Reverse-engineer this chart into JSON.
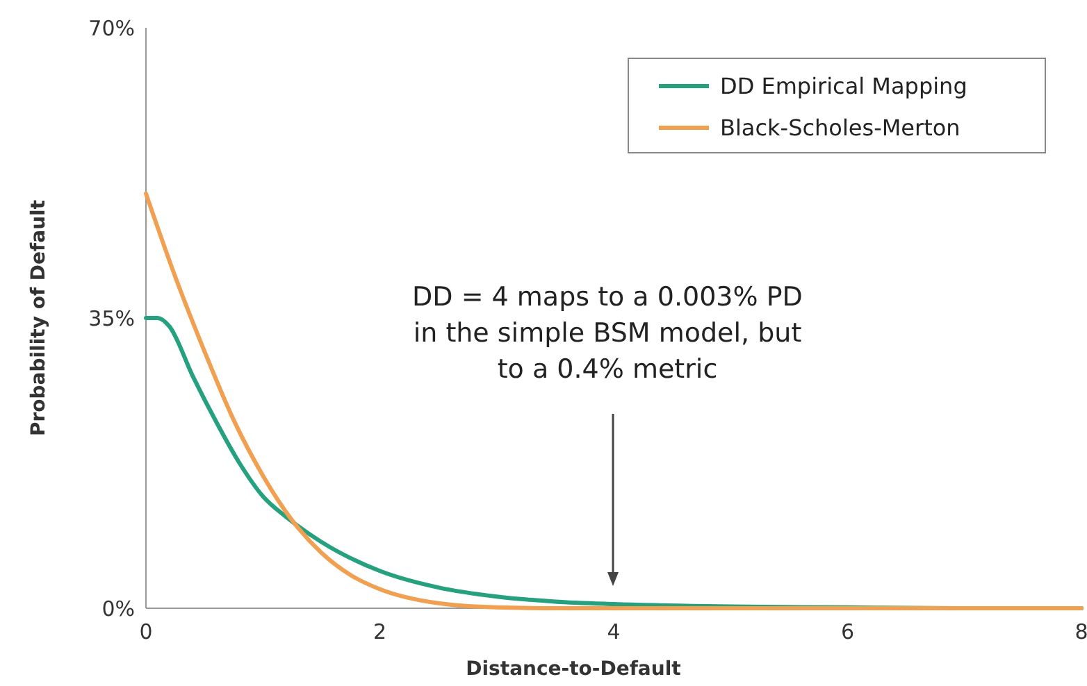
{
  "chart_data": {
    "type": "line",
    "xlabel": "Distance-to-Default",
    "ylabel": "Probability of Default",
    "xlim": [
      0,
      8
    ],
    "xticks": [
      0,
      2,
      4,
      6,
      8
    ],
    "ylim": [
      0,
      70
    ],
    "yticks": [
      {
        "value": 0,
        "label": "0%"
      },
      {
        "value": 35,
        "label": "35%"
      },
      {
        "value": 70,
        "label": "70%"
      }
    ],
    "grid": false,
    "legend": "top right",
    "marker": "none",
    "line_style": "solid",
    "series": [
      {
        "name": "DD Empirical Mapping",
        "color": "#26a17f",
        "x": [
          0,
          0.1,
          0.2,
          0.4,
          0.6,
          0.8,
          1,
          1.2,
          1.5,
          2,
          2.5,
          3,
          3.5,
          4,
          5,
          6,
          7,
          8
        ],
        "values": [
          35,
          35,
          34,
          28,
          22.5,
          17.5,
          13.5,
          11,
          8,
          4.5,
          2.5,
          1.4,
          0.8,
          0.5,
          0.2,
          0.1,
          0,
          0
        ]
      },
      {
        "name": "Black-Scholes-Merton",
        "color": "#f0a050",
        "x": [
          0,
          0.25,
          0.5,
          0.75,
          1,
          1.25,
          1.5,
          1.75,
          2,
          2.5,
          3,
          3.5,
          4,
          6,
          8
        ],
        "values": [
          50,
          40,
          31,
          22.7,
          16,
          10.6,
          6.7,
          4,
          2.3,
          0.6,
          0.1,
          0,
          0,
          0,
          0
        ]
      }
    ],
    "annotations": [
      "DD = 4 maps to a 0.003% PD in the simple BSM model, but to a 0.4% metric"
    ]
  }
}
